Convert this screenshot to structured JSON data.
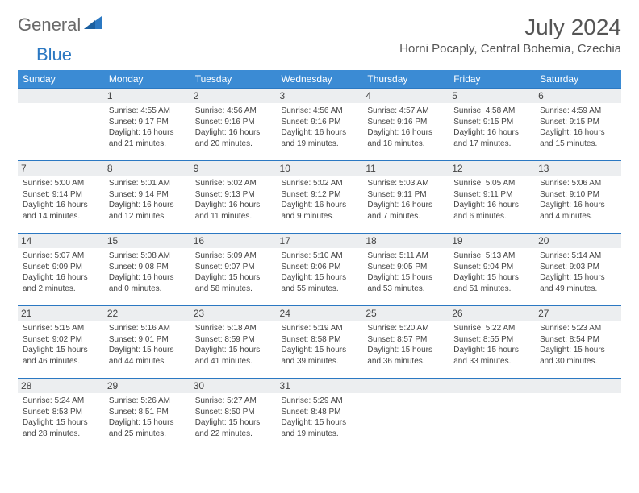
{
  "logo": {
    "word1": "General",
    "word2": "Blue",
    "word1_color": "#6a6a6a",
    "word2_color": "#2b78c2"
  },
  "title": "July 2024",
  "location": "Horni Pocaply, Central Bohemia, Czechia",
  "day_headers": [
    "Sunday",
    "Monday",
    "Tuesday",
    "Wednesday",
    "Thursday",
    "Friday",
    "Saturday"
  ],
  "colors": {
    "header_bg": "#3b8bd4",
    "header_text": "#ffffff",
    "daynum_bg": "#eceef0",
    "cell_border": "#2b78c2",
    "page_bg": "#ffffff",
    "text": "#444444"
  },
  "fonts": {
    "title_size": 28,
    "location_size": 15,
    "th_size": 12,
    "daynum_size": 12,
    "cell_size": 10
  },
  "weeks": [
    [
      {},
      {
        "n": "1",
        "sr": "4:55 AM",
        "ss": "9:17 PM",
        "d": "16 hours and 21 minutes."
      },
      {
        "n": "2",
        "sr": "4:56 AM",
        "ss": "9:16 PM",
        "d": "16 hours and 20 minutes."
      },
      {
        "n": "3",
        "sr": "4:56 AM",
        "ss": "9:16 PM",
        "d": "16 hours and 19 minutes."
      },
      {
        "n": "4",
        "sr": "4:57 AM",
        "ss": "9:16 PM",
        "d": "16 hours and 18 minutes."
      },
      {
        "n": "5",
        "sr": "4:58 AM",
        "ss": "9:15 PM",
        "d": "16 hours and 17 minutes."
      },
      {
        "n": "6",
        "sr": "4:59 AM",
        "ss": "9:15 PM",
        "d": "16 hours and 15 minutes."
      }
    ],
    [
      {
        "n": "7",
        "sr": "5:00 AM",
        "ss": "9:14 PM",
        "d": "16 hours and 14 minutes."
      },
      {
        "n": "8",
        "sr": "5:01 AM",
        "ss": "9:14 PM",
        "d": "16 hours and 12 minutes."
      },
      {
        "n": "9",
        "sr": "5:02 AM",
        "ss": "9:13 PM",
        "d": "16 hours and 11 minutes."
      },
      {
        "n": "10",
        "sr": "5:02 AM",
        "ss": "9:12 PM",
        "d": "16 hours and 9 minutes."
      },
      {
        "n": "11",
        "sr": "5:03 AM",
        "ss": "9:11 PM",
        "d": "16 hours and 7 minutes."
      },
      {
        "n": "12",
        "sr": "5:05 AM",
        "ss": "9:11 PM",
        "d": "16 hours and 6 minutes."
      },
      {
        "n": "13",
        "sr": "5:06 AM",
        "ss": "9:10 PM",
        "d": "16 hours and 4 minutes."
      }
    ],
    [
      {
        "n": "14",
        "sr": "5:07 AM",
        "ss": "9:09 PM",
        "d": "16 hours and 2 minutes."
      },
      {
        "n": "15",
        "sr": "5:08 AM",
        "ss": "9:08 PM",
        "d": "16 hours and 0 minutes."
      },
      {
        "n": "16",
        "sr": "5:09 AM",
        "ss": "9:07 PM",
        "d": "15 hours and 58 minutes."
      },
      {
        "n": "17",
        "sr": "5:10 AM",
        "ss": "9:06 PM",
        "d": "15 hours and 55 minutes."
      },
      {
        "n": "18",
        "sr": "5:11 AM",
        "ss": "9:05 PM",
        "d": "15 hours and 53 minutes."
      },
      {
        "n": "19",
        "sr": "5:13 AM",
        "ss": "9:04 PM",
        "d": "15 hours and 51 minutes."
      },
      {
        "n": "20",
        "sr": "5:14 AM",
        "ss": "9:03 PM",
        "d": "15 hours and 49 minutes."
      }
    ],
    [
      {
        "n": "21",
        "sr": "5:15 AM",
        "ss": "9:02 PM",
        "d": "15 hours and 46 minutes."
      },
      {
        "n": "22",
        "sr": "5:16 AM",
        "ss": "9:01 PM",
        "d": "15 hours and 44 minutes."
      },
      {
        "n": "23",
        "sr": "5:18 AM",
        "ss": "8:59 PM",
        "d": "15 hours and 41 minutes."
      },
      {
        "n": "24",
        "sr": "5:19 AM",
        "ss": "8:58 PM",
        "d": "15 hours and 39 minutes."
      },
      {
        "n": "25",
        "sr": "5:20 AM",
        "ss": "8:57 PM",
        "d": "15 hours and 36 minutes."
      },
      {
        "n": "26",
        "sr": "5:22 AM",
        "ss": "8:55 PM",
        "d": "15 hours and 33 minutes."
      },
      {
        "n": "27",
        "sr": "5:23 AM",
        "ss": "8:54 PM",
        "d": "15 hours and 30 minutes."
      }
    ],
    [
      {
        "n": "28",
        "sr": "5:24 AM",
        "ss": "8:53 PM",
        "d": "15 hours and 28 minutes."
      },
      {
        "n": "29",
        "sr": "5:26 AM",
        "ss": "8:51 PM",
        "d": "15 hours and 25 minutes."
      },
      {
        "n": "30",
        "sr": "5:27 AM",
        "ss": "8:50 PM",
        "d": "15 hours and 22 minutes."
      },
      {
        "n": "31",
        "sr": "5:29 AM",
        "ss": "8:48 PM",
        "d": "15 hours and 19 minutes."
      },
      {},
      {},
      {}
    ]
  ]
}
